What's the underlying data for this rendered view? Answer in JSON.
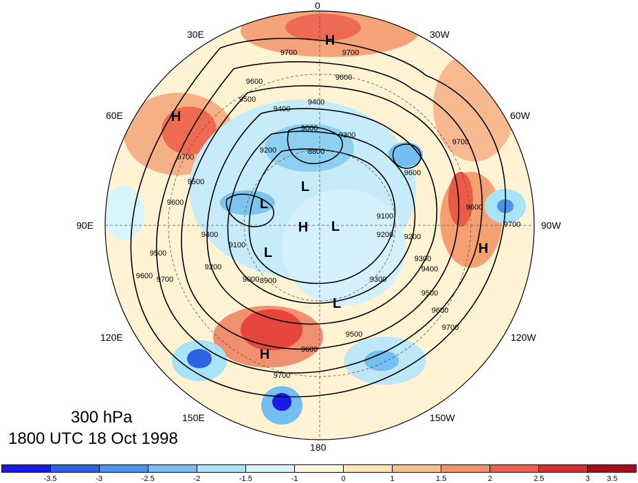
{
  "map": {
    "longitude_labels": [
      "0",
      "30W",
      "60W",
      "90W",
      "120W",
      "150W",
      "180",
      "150E",
      "120E",
      "90E",
      "60E",
      "30E"
    ],
    "contour_labels": [
      "9700",
      "9700",
      "9600",
      "9600",
      "9500",
      "9400",
      "9400",
      "9300",
      "9200",
      "9000",
      "8800",
      "9700",
      "9600",
      "9500",
      "9400",
      "9200",
      "9100",
      "9000",
      "8900",
      "9700",
      "9600",
      "9500",
      "9300",
      "9200",
      "9100",
      "9500",
      "9600",
      "9700",
      "9700",
      "9600",
      "9500",
      "9700",
      "9700",
      "9400",
      "9300",
      "9200",
      "9600",
      "9600"
    ],
    "centers": [
      "H",
      "H",
      "H",
      "H",
      "H",
      "L",
      "L",
      "L",
      "L",
      "L"
    ],
    "colors": {
      "ocean_outside": "#ffffff",
      "neutral": "#fff8dc",
      "light_blue": "#d4f1fb",
      "blue": "#7cc6ee",
      "orange": "#f6a877",
      "red": "#ef5b4d",
      "contour": "#000000",
      "coast": "#333333"
    }
  },
  "caption": {
    "level": "300 hPa",
    "time": "1800 UTC 18 Oct 1998"
  },
  "colorbar": {
    "colors": [
      "#1a1ae6",
      "#2d62e6",
      "#4a94ec",
      "#73bff2",
      "#a8e4f8",
      "#d9f5fc",
      "#fff8dc",
      "#fde6b4",
      "#f8c08a",
      "#f39266",
      "#ee5f4a",
      "#d92c36",
      "#a80d1e"
    ],
    "tick_labels": [
      "-3.5",
      "-3",
      "-2.5",
      "-2",
      "-1.5",
      "-1",
      "0",
      "1",
      "1.5",
      "2",
      "2.5",
      "3",
      "3.5"
    ]
  }
}
